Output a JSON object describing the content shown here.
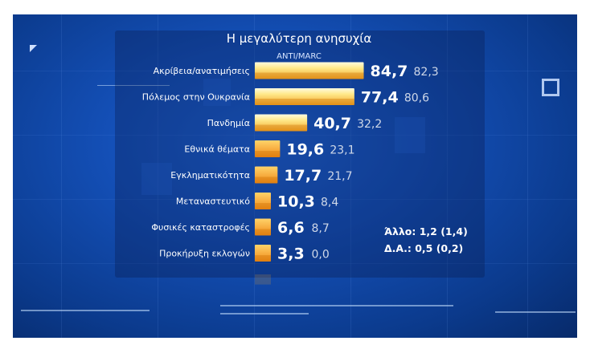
{
  "chart_data": {
    "type": "bar",
    "orientation": "horizontal",
    "title": "Η μεγαλύτερη ανησυχία",
    "source": "ANTI/MARC",
    "categories": [
      "Ακρίβεια/ανατιμήσεις",
      "Πόλεμος στην Ουκρανία",
      "Πανδημία",
      "Εθνικά θέματα",
      "Εγκληματικότητα",
      "Μεταναστευτικό",
      "Φυσικές καταστροφές",
      "Προκήρυξη εκλογών"
    ],
    "series": [
      {
        "values": [
          84.7,
          77.4,
          40.7,
          19.6,
          17.7,
          10.3,
          6.6,
          3.3
        ]
      },
      {
        "values": [
          82.3,
          80.6,
          32.2,
          23.1,
          21.7,
          8.4,
          8.7,
          0.0
        ]
      }
    ],
    "value_labels": [
      "84,7",
      "77,4",
      "40,7",
      "19,6",
      "17,7",
      "10,3",
      "6,6",
      "3,3"
    ],
    "prev_labels": [
      "82,3",
      "80,6",
      "32,2",
      "23,1",
      "21,7",
      "8,4",
      "8,7",
      "0,0"
    ],
    "xlim": [
      0,
      100
    ],
    "notes": [
      "Άλλο: 1,2 (1,4)",
      "Δ.Α.: 0,5 (0,2)"
    ],
    "colors": {
      "bar_top": "#fff3b0",
      "bar_bottom": "#f0a020",
      "background": "#1450b8"
    }
  }
}
